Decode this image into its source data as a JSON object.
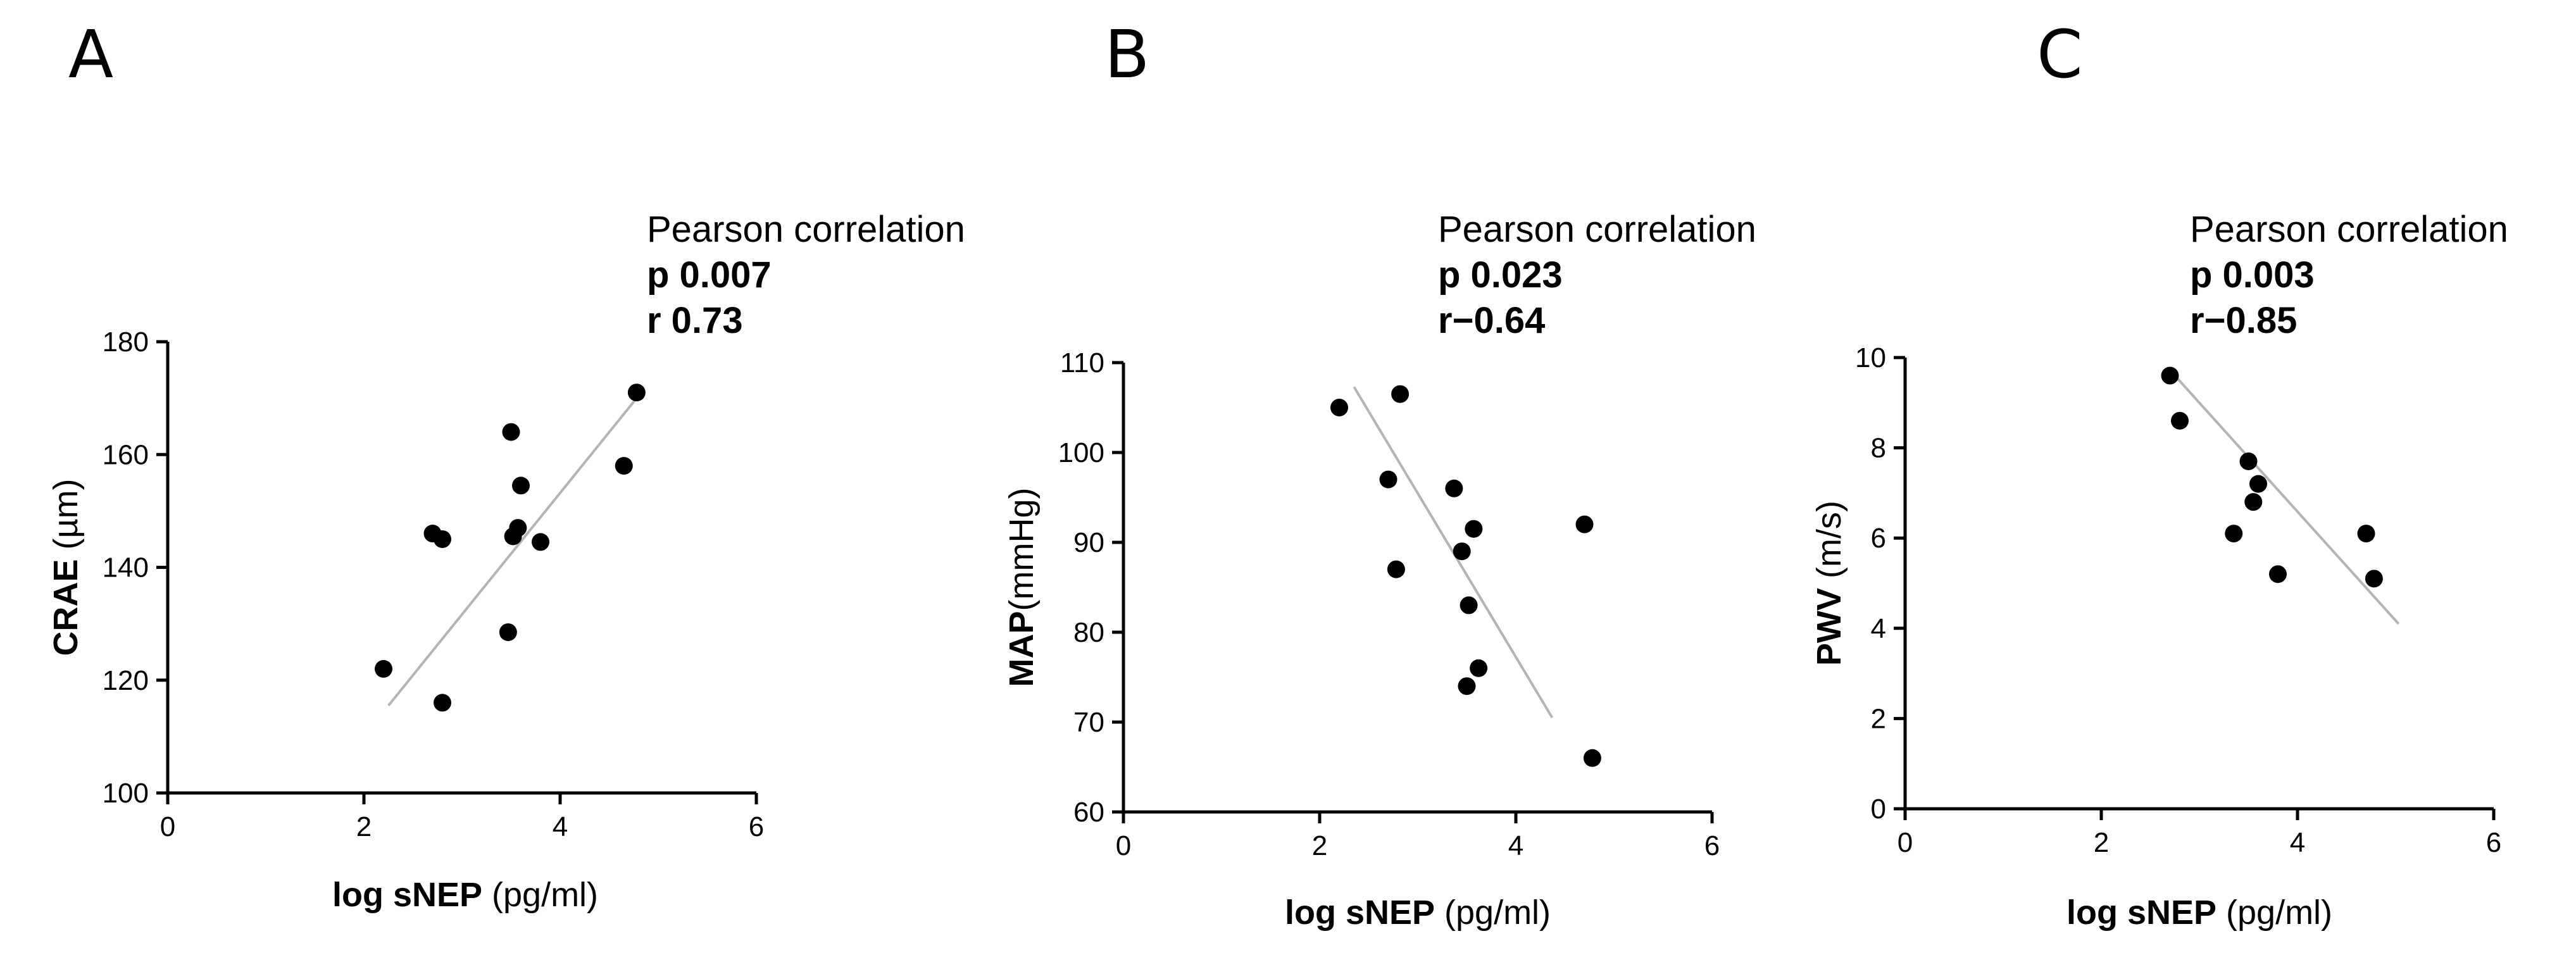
{
  "chart_data": [
    {
      "type": "scatter",
      "panel_label": "A",
      "annotation": {
        "title": "Pearson correlation",
        "p": "p 0.007",
        "r": "r 0.73"
      },
      "xlabel": {
        "bold": "log sNEP",
        "unit": " (pg/ml)"
      },
      "ylabel": {
        "bold": "CRAE",
        "unit": " (µm)"
      },
      "xlim": [
        0,
        6
      ],
      "ylim": [
        100,
        180
      ],
      "xticks": [
        0,
        2,
        4,
        6
      ],
      "yticks": [
        100,
        120,
        140,
        160,
        180
      ],
      "points": [
        {
          "x": 2.2,
          "y": 122
        },
        {
          "x": 2.7,
          "y": 146
        },
        {
          "x": 2.8,
          "y": 145
        },
        {
          "x": 2.8,
          "y": 116
        },
        {
          "x": 3.47,
          "y": 128.5
        },
        {
          "x": 3.5,
          "y": 164
        },
        {
          "x": 3.52,
          "y": 145.5
        },
        {
          "x": 3.57,
          "y": 147
        },
        {
          "x": 3.6,
          "y": 154.5
        },
        {
          "x": 3.8,
          "y": 144.5
        },
        {
          "x": 4.65,
          "y": 158
        },
        {
          "x": 4.78,
          "y": 171
        }
      ],
      "fit_line": [
        {
          "x": 2.25,
          "y": 115.5
        },
        {
          "x": 4.78,
          "y": 170
        }
      ]
    },
    {
      "type": "scatter",
      "panel_label": "B",
      "annotation": {
        "title": "Pearson correlation",
        "p": "p 0.023",
        "r": "r−0.64"
      },
      "xlabel": {
        "bold": "log sNEP",
        "unit": " (pg/ml)"
      },
      "ylabel": {
        "bold": "MAP",
        "unit": "(mmHg)"
      },
      "xlim": [
        0,
        6
      ],
      "ylim": [
        60,
        110
      ],
      "xticks": [
        0,
        2,
        4,
        6
      ],
      "yticks": [
        60,
        70,
        80,
        90,
        100,
        110
      ],
      "points": [
        {
          "x": 2.2,
          "y": 105
        },
        {
          "x": 2.7,
          "y": 97
        },
        {
          "x": 2.78,
          "y": 87
        },
        {
          "x": 2.82,
          "y": 106.5
        },
        {
          "x": 3.37,
          "y": 96
        },
        {
          "x": 3.45,
          "y": 89
        },
        {
          "x": 3.5,
          "y": 74
        },
        {
          "x": 3.52,
          "y": 83
        },
        {
          "x": 3.57,
          "y": 91.5
        },
        {
          "x": 3.62,
          "y": 76
        },
        {
          "x": 4.7,
          "y": 92
        },
        {
          "x": 4.78,
          "y": 66
        }
      ],
      "fit_line": [
        {
          "x": 2.35,
          "y": 107.3
        },
        {
          "x": 4.37,
          "y": 70.5
        }
      ]
    },
    {
      "type": "scatter",
      "panel_label": "C",
      "annotation": {
        "title": "Pearson correlation",
        "p": "p 0.003",
        "r": "r−0.85"
      },
      "xlabel": {
        "bold": "log sNEP",
        "unit": " (pg/ml)"
      },
      "ylabel": {
        "bold": "PWV",
        "unit": " (m/s)"
      },
      "xlim": [
        0,
        6
      ],
      "ylim": [
        0,
        10
      ],
      "xticks": [
        0,
        2,
        4,
        6
      ],
      "yticks": [
        0,
        2,
        4,
        6,
        8,
        10
      ],
      "points": [
        {
          "x": 2.7,
          "y": 9.6
        },
        {
          "x": 2.8,
          "y": 8.6
        },
        {
          "x": 3.35,
          "y": 6.1
        },
        {
          "x": 3.5,
          "y": 7.7
        },
        {
          "x": 3.55,
          "y": 6.8
        },
        {
          "x": 3.6,
          "y": 7.2
        },
        {
          "x": 3.8,
          "y": 5.2
        },
        {
          "x": 4.7,
          "y": 6.1
        },
        {
          "x": 4.78,
          "y": 5.1
        }
      ],
      "fit_line": [
        {
          "x": 2.75,
          "y": 9.6
        },
        {
          "x": 5.03,
          "y": 4.1
        }
      ]
    }
  ]
}
